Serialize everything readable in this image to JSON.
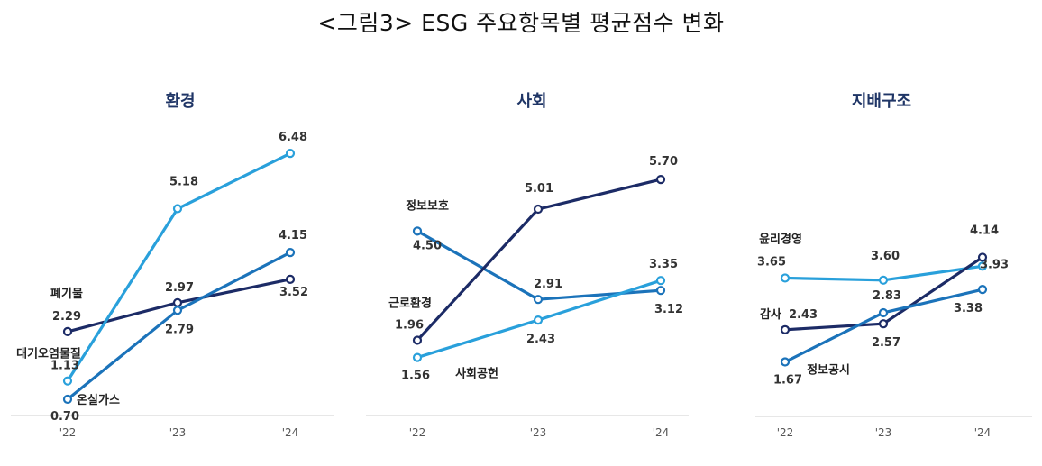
{
  "main_title": "<그림3> ESG 주요항목별 평균점수 변화",
  "chart_data": [
    {
      "type": "line",
      "title": "환경",
      "categories": [
        "'22",
        "'23",
        "'24"
      ],
      "ylim": [
        0,
        7
      ],
      "series": [
        {
          "name": "폐기물",
          "values": [
            2.29,
            2.97,
            3.52
          ],
          "color": "#1c2b66"
        },
        {
          "name": "대기오염물질",
          "values": [
            1.13,
            5.18,
            6.48
          ],
          "color": "#29a0db"
        },
        {
          "name": "온실가스",
          "values": [
            0.7,
            2.79,
            4.15
          ],
          "color": "#1b73ba"
        }
      ]
    },
    {
      "type": "line",
      "title": "사회",
      "categories": [
        "'22",
        "'23",
        "'24"
      ],
      "ylim": [
        0,
        7
      ],
      "series": [
        {
          "name": "정보보호",
          "values": [
            4.5,
            2.91,
            3.12
          ],
          "color": "#1b73ba"
        },
        {
          "name": "근로환경",
          "values": [
            1.96,
            5.01,
            5.7
          ],
          "color": "#1c2b66"
        },
        {
          "name": "사회공헌",
          "values": [
            1.56,
            2.43,
            3.35
          ],
          "color": "#29a0db"
        }
      ]
    },
    {
      "type": "line",
      "title": "지배구조",
      "categories": [
        "'22",
        "'23",
        "'24"
      ],
      "ylim": [
        0,
        7
      ],
      "series": [
        {
          "name": "윤리경영",
          "values": [
            3.65,
            3.6,
            3.93
          ],
          "color": "#29a0db"
        },
        {
          "name": "감사",
          "values": [
            2.43,
            2.57,
            4.14
          ],
          "color": "#1c2b66"
        },
        {
          "name": "정보공시",
          "values": [
            1.67,
            2.83,
            3.38
          ],
          "color": "#1b73ba"
        }
      ]
    }
  ]
}
